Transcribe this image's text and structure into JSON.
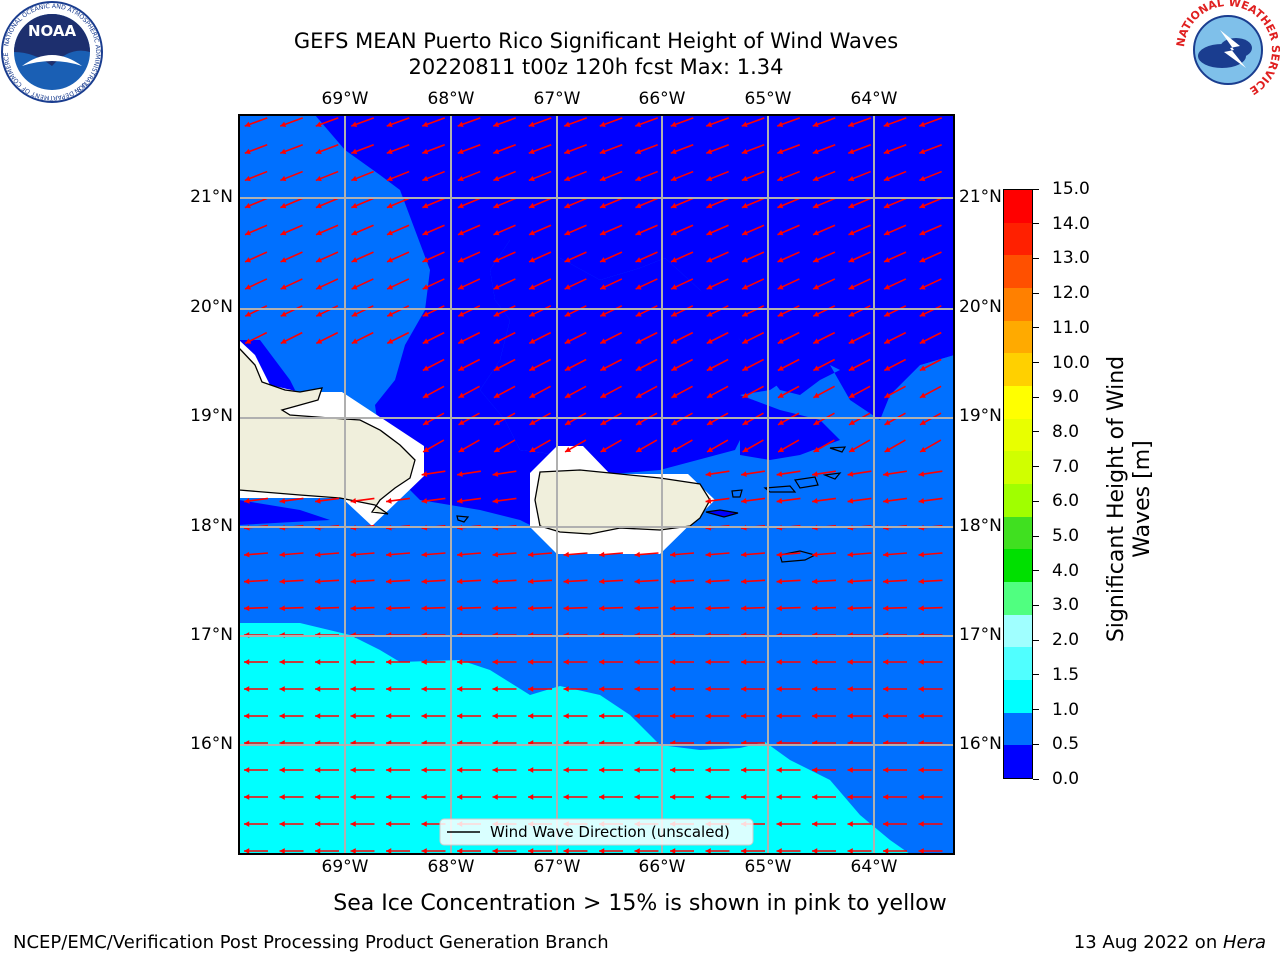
{
  "title": {
    "line1": "GEFS MEAN Puerto Rico Significant Height of Wind Waves",
    "line2": "20220811 t00z 120h fcst   Max: 1.34"
  },
  "map": {
    "lon_labels": [
      "69°W",
      "68°W",
      "67°W",
      "66°W",
      "65°W",
      "64°W"
    ],
    "lat_labels": [
      "21°N",
      "20°N",
      "19°N",
      "18°N",
      "17°N",
      "16°N"
    ],
    "legend_text": "Wind Wave Direction (unscaled)",
    "fill_colors": {
      "deep": "#0000ff",
      "mid": "#0070ff",
      "shallow": "#00ffff",
      "land": "#f0efdc",
      "arrow": "#ff0000"
    }
  },
  "colorbar": {
    "label": "Significant Height of Wind Waves [m]",
    "label_line1": "Significant Height of Wind",
    "label_line2": "Waves [m]",
    "ticks": [
      "15.0",
      "14.0",
      "13.0",
      "12.0",
      "11.0",
      "10.0",
      "9.0",
      "8.0",
      "7.0",
      "6.0",
      "5.0",
      "4.0",
      "3.0",
      "2.0",
      "1.5",
      "1.0",
      "0.5",
      "0.0"
    ],
    "colors_top_to_bottom": [
      "#ff0000",
      "#ff2000",
      "#ff5000",
      "#ff8000",
      "#ffaa00",
      "#ffd000",
      "#ffff00",
      "#e8ff00",
      "#d0ff00",
      "#a0ff00",
      "#40e020",
      "#00e000",
      "#50ff80",
      "#a0ffff",
      "#50ffff",
      "#00ffff",
      "#0070ff",
      "#0000ff"
    ]
  },
  "note": "Sea Ice Concentration > 15% is shown in pink to yellow",
  "footer": {
    "left": "NCEP/EMC/Verification Post Processing Product Generation Branch",
    "right_date": "13 Aug 2022 on ",
    "right_host": "Hera"
  },
  "logos": {
    "noaa_text": "NOAA",
    "noaa_ring": "NATIONAL OCEANIC AND ATMOSPHERIC ADMINISTRATION",
    "noaa_ring_bottom": "U.S. DEPARTMENT OF COMMERCE",
    "nws_ring": "NATIONAL WEATHER SERVICE"
  }
}
